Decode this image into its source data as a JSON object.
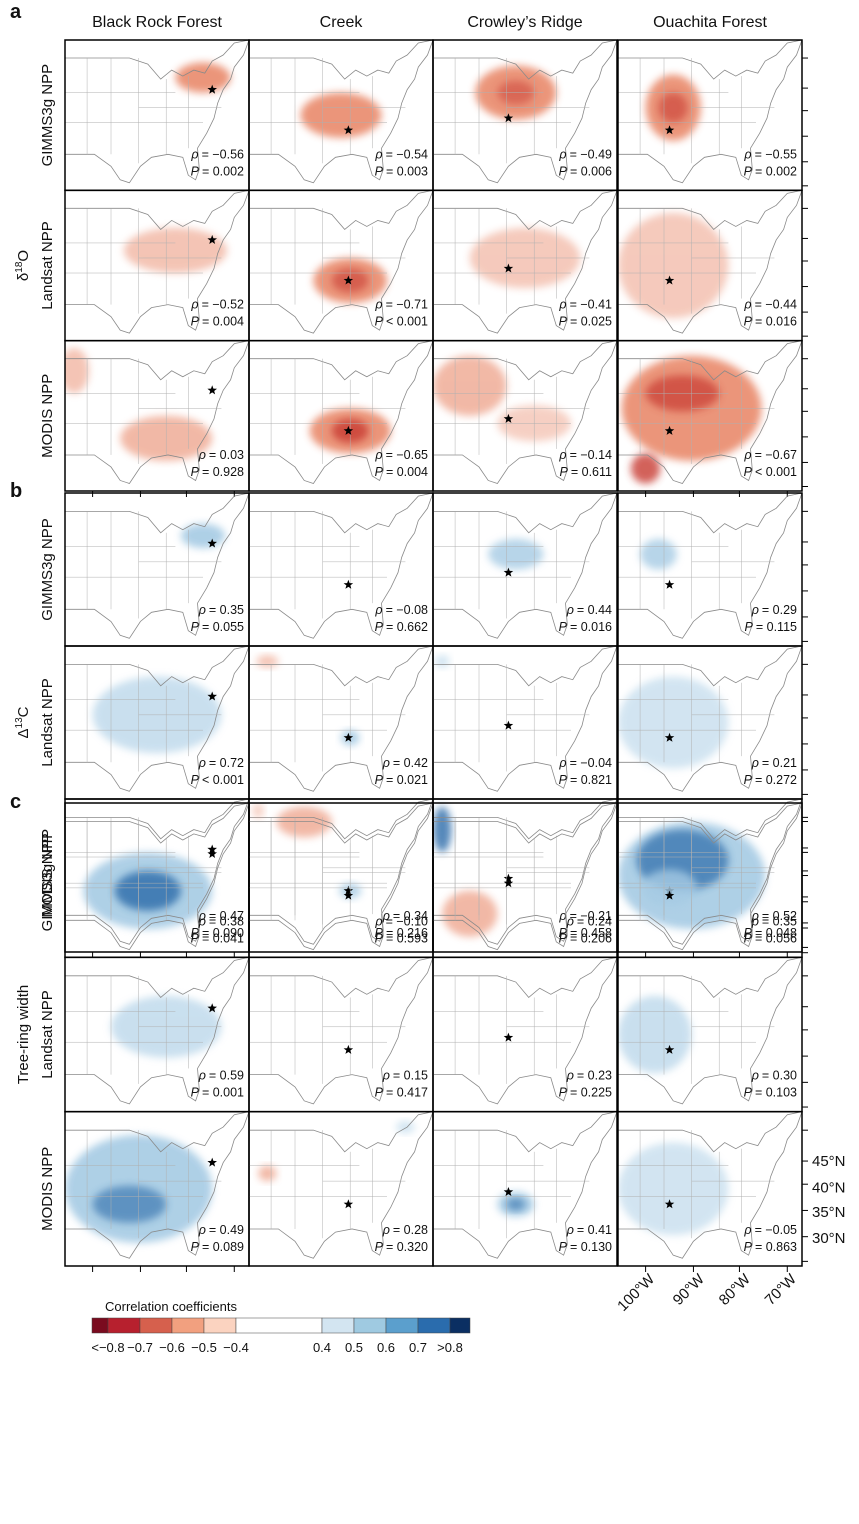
{
  "panel_letters": [
    "a",
    "b",
    "c"
  ],
  "columns": [
    "Black Rock Forest",
    "Creek",
    "Crowley’s Ridge",
    "Ouachita Forest"
  ],
  "rho_symbol": "ρ",
  "p_symbol": "P",
  "panels": [
    {
      "group_label": {
        "base": "δ",
        "sup": "18",
        "rest": "O"
      },
      "rows": [
        {
          "label": "GIMMS3g NPP",
          "cells": [
            {
              "rho": "= −0.56",
              "p": "= 0.002"
            },
            {
              "rho": "= −0.54",
              "p": "= 0.003"
            },
            {
              "rho": "= −0.49",
              "p": "= 0.006"
            },
            {
              "rho": "= −0.55",
              "p": "= 0.002"
            }
          ]
        },
        {
          "label": "Landsat NPP",
          "cells": [
            {
              "rho": "= −0.52",
              "p": "= 0.004"
            },
            {
              "rho": "= −0.71",
              "p": "< 0.001"
            },
            {
              "rho": "= −0.41",
              "p": "= 0.025"
            },
            {
              "rho": "= −0.44",
              "p": "= 0.016"
            }
          ]
        },
        {
          "label": "MODIS NPP",
          "cells": [
            {
              "rho": "= 0.03",
              "p": "= 0.928"
            },
            {
              "rho": "= −0.65",
              "p": "= 0.004"
            },
            {
              "rho": "= −0.14",
              "p": "= 0.611"
            },
            {
              "rho": "= −0.67",
              "p": "< 0.001"
            }
          ]
        }
      ]
    },
    {
      "group_label": {
        "base": "Δ",
        "sup": "13",
        "rest": "C"
      },
      "rows": [
        {
          "label": "GIMMS3g NPP",
          "cells": [
            {
              "rho": "= 0.35",
              "p": "= 0.055"
            },
            {
              "rho": "= −0.08",
              "p": "= 0.662"
            },
            {
              "rho": "= 0.44",
              "p": "= 0.016"
            },
            {
              "rho": "= 0.29",
              "p": "= 0.115"
            }
          ]
        },
        {
          "label": "Landsat NPP",
          "cells": [
            {
              "rho": "= 0.72",
              "p": "< 0.001"
            },
            {
              "rho": "= 0.42",
              "p": "= 0.021"
            },
            {
              "rho": "= −0.04",
              "p": "= 0.821"
            },
            {
              "rho": "= 0.21",
              "p": "= 0.272"
            }
          ]
        },
        {
          "label": "MODIS NPP",
          "cells": [
            {
              "rho": "= 0.47",
              "p": "= 0.090"
            },
            {
              "rho": "= 0.34",
              "p": "= 0.216"
            },
            {
              "rho": "= −0.21",
              "p": "= 0.458"
            },
            {
              "rho": "= 0.52",
              "p": "= 0.048"
            }
          ]
        }
      ]
    },
    {
      "group_label": {
        "base": "Tree-ring width"
      },
      "rows": [
        {
          "label": "GIMMS3g NPP",
          "cells": [
            {
              "rho": "= 0.38",
              "p": "= 0.041"
            },
            {
              "rho": "= −0.10",
              "p": "= 0.593"
            },
            {
              "rho": "= 0.24",
              "p": "= 0.206"
            },
            {
              "rho": "= 0.35",
              "p": "= 0.056"
            }
          ]
        },
        {
          "label": "Landsat NPP",
          "cells": [
            {
              "rho": "= 0.59",
              "p": "= 0.001"
            },
            {
              "rho": "= 0.15",
              "p": "= 0.417"
            },
            {
              "rho": "= 0.23",
              "p": "= 0.225"
            },
            {
              "rho": "= 0.30",
              "p": "= 0.103"
            }
          ]
        },
        {
          "label": "MODIS NPP",
          "cells": [
            {
              "rho": "= 0.49",
              "p": "= 0.089"
            },
            {
              "rho": "= 0.28",
              "p": "= 0.320"
            },
            {
              "rho": "= 0.41",
              "p": "= 0.130"
            },
            {
              "rho": "= −0.05",
              "p": "= 0.863"
            }
          ]
        }
      ]
    }
  ],
  "lat_labels": [
    "45°N",
    "40°N",
    "35°N",
    "30°N"
  ],
  "lon_labels": [
    "100°W",
    "90°W",
    "80°W",
    "70°W"
  ],
  "colorbar": {
    "title": "Correlation coefficients",
    "labels": [
      "<−0.8",
      "−0.7",
      "−0.6",
      "−0.5",
      "−0.4",
      "0.4",
      "0.5",
      "0.6",
      "0.7",
      ">0.8"
    ],
    "colors": [
      "#7a0b1f",
      "#b7202e",
      "#d6604d",
      "#f2a07f",
      "#fbd3c0",
      "#ffffff",
      "#d3e5f1",
      "#9fcae1",
      "#5b9fcd",
      "#2a6cad",
      "#0b2f62"
    ]
  }
}
